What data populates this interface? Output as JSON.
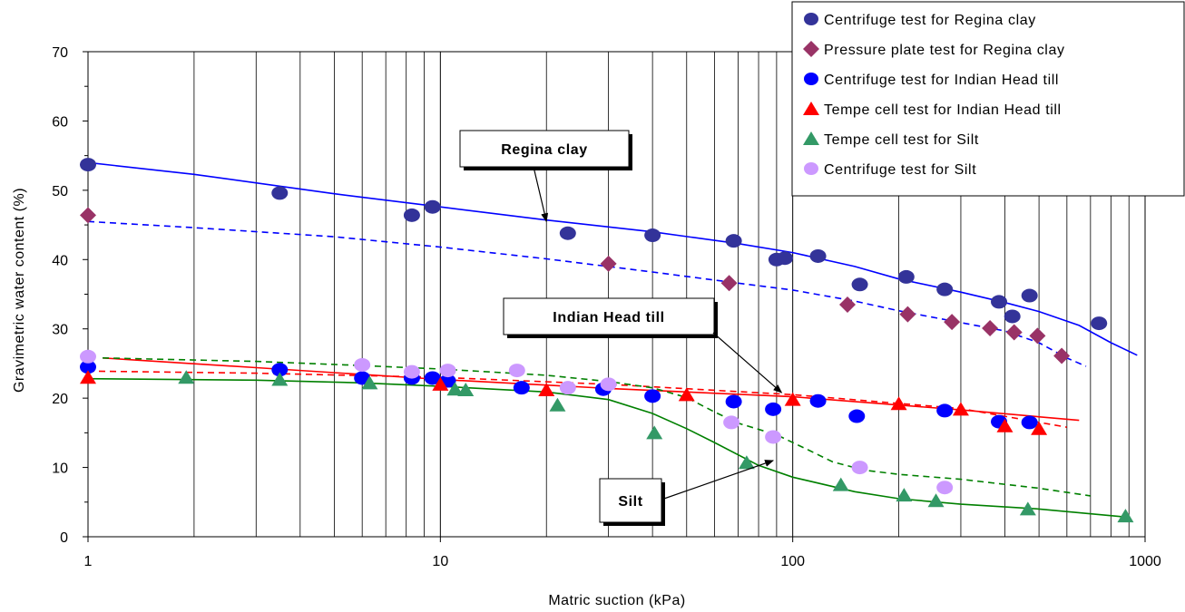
{
  "chart_data": {
    "type": "scatter",
    "xlabel": "Matric suction (kPa)",
    "ylabel": "Gravimetric water content (%)",
    "x_scale": "log",
    "xlim": [
      1,
      1000
    ],
    "ylim": [
      0,
      70
    ],
    "x_ticks": [
      "1",
      "10",
      "100",
      "1000"
    ],
    "y_ticks": [
      "0",
      "10",
      "20",
      "30",
      "40",
      "50",
      "60",
      "70"
    ],
    "grid": "vertical log gridlines",
    "legend_position": "top-right",
    "colors": {
      "navy": "#333399",
      "purple": "#993366",
      "blue": "#0000ff",
      "red": "#ff0000",
      "green": "#339966",
      "lilac": "#cc99ff",
      "fit_blue": "#0000ff",
      "fit_red": "#ff0000",
      "fit_green": "#008000"
    },
    "series": [
      {
        "name": "Centrifuge test for Regina clay",
        "marker": "circle",
        "color": "#333399",
        "points": [
          [
            1,
            53.7
          ],
          [
            3.5,
            49.6
          ],
          [
            8.3,
            46.4
          ],
          [
            9.5,
            47.6
          ],
          [
            23,
            43.8
          ],
          [
            40,
            43.5
          ],
          [
            68,
            42.7
          ],
          [
            90,
            40
          ],
          [
            95,
            40.2
          ],
          [
            118,
            40.5
          ],
          [
            155,
            36.4
          ],
          [
            210,
            37.5
          ],
          [
            270,
            35.7
          ],
          [
            385,
            33.9
          ],
          [
            420,
            31.8
          ],
          [
            470,
            34.8
          ],
          [
            740,
            30.8
          ]
        ]
      },
      {
        "name": "Pressure plate test for Regina clay",
        "marker": "diamond",
        "color": "#993366",
        "points": [
          [
            1,
            46.4
          ],
          [
            30,
            39.4
          ],
          [
            66,
            36.6
          ],
          [
            143,
            33.5
          ],
          [
            212,
            32.1
          ],
          [
            283,
            31
          ],
          [
            363,
            30.1
          ],
          [
            425,
            29.5
          ],
          [
            495,
            29
          ],
          [
            580,
            26.1
          ]
        ]
      },
      {
        "name": "Centrifuge test for Indian Head till",
        "marker": "circle",
        "color": "#0000ff",
        "points": [
          [
            1,
            24.5
          ],
          [
            3.5,
            24.1
          ],
          [
            6,
            22.9
          ],
          [
            8.3,
            22.9
          ],
          [
            9.5,
            22.9
          ],
          [
            10.5,
            22.5
          ],
          [
            17,
            21.5
          ],
          [
            29,
            21.3
          ],
          [
            40,
            20.3
          ],
          [
            68,
            19.5
          ],
          [
            88,
            18.4
          ],
          [
            118,
            19.6
          ],
          [
            152,
            17.4
          ],
          [
            270,
            18.2
          ],
          [
            385,
            16.6
          ],
          [
            470,
            16.5
          ]
        ]
      },
      {
        "name": "Tempe cell test for Indian Head till",
        "marker": "triangle",
        "color": "#ff0000",
        "points": [
          [
            1,
            23
          ],
          [
            10,
            22
          ],
          [
            20,
            21.2
          ],
          [
            50,
            20.5
          ],
          [
            100,
            19.8
          ],
          [
            200,
            19.2
          ],
          [
            300,
            18.4
          ],
          [
            400,
            16
          ],
          [
            500,
            15.6
          ]
        ]
      },
      {
        "name": "Tempe cell  test for Silt",
        "marker": "triangle",
        "color": "#339966",
        "points": [
          [
            1.9,
            23
          ],
          [
            3.5,
            22.7
          ],
          [
            6.3,
            22.2
          ],
          [
            11,
            21.3
          ],
          [
            11.8,
            21.2
          ],
          [
            21.5,
            19
          ],
          [
            40.5,
            15
          ],
          [
            74,
            10.7
          ],
          [
            137,
            7.5
          ],
          [
            207,
            6
          ],
          [
            255,
            5.2
          ],
          [
            465,
            4
          ],
          [
            880,
            3
          ]
        ]
      },
      {
        "name": "Centrifuge test for Silt",
        "marker": "circle",
        "color": "#cc99ff",
        "points": [
          [
            1,
            26
          ],
          [
            6,
            24.8
          ],
          [
            8.3,
            23.8
          ],
          [
            10.5,
            24
          ],
          [
            16.5,
            24
          ],
          [
            23,
            21.5
          ],
          [
            30,
            22
          ],
          [
            67,
            16.5
          ],
          [
            88,
            14.4
          ],
          [
            155,
            10
          ],
          [
            270,
            7.1
          ]
        ]
      }
    ],
    "fit_curves": [
      {
        "color": "#0000ff",
        "dash": "solid",
        "points": [
          [
            1,
            54
          ],
          [
            2,
            52.3
          ],
          [
            5,
            49.5
          ],
          [
            10,
            47.6
          ],
          [
            20,
            45.7
          ],
          [
            40,
            44
          ],
          [
            70,
            42.3
          ],
          [
            100,
            41
          ],
          [
            150,
            39
          ],
          [
            200,
            37.2
          ],
          [
            300,
            35.3
          ],
          [
            400,
            33.8
          ],
          [
            500,
            32.5
          ],
          [
            650,
            30.5
          ],
          [
            800,
            28
          ],
          [
            950,
            26.2
          ]
        ]
      },
      {
        "color": "#0000ff",
        "dash": "dashed",
        "points": [
          [
            1,
            45.5
          ],
          [
            2,
            44.6
          ],
          [
            5,
            43.3
          ],
          [
            10,
            41.8
          ],
          [
            20,
            40.1
          ],
          [
            40,
            38.2
          ],
          [
            70,
            36.6
          ],
          [
            100,
            35.6
          ],
          [
            150,
            34
          ],
          [
            200,
            32.6
          ],
          [
            300,
            30.9
          ],
          [
            400,
            29.7
          ],
          [
            500,
            28
          ],
          [
            600,
            25.8
          ],
          [
            680,
            24.6
          ]
        ]
      },
      {
        "color": "#ff0000",
        "dash": "solid",
        "points": [
          [
            1.1,
            25.8
          ],
          [
            3,
            24.4
          ],
          [
            10,
            22.7
          ],
          [
            30,
            21.4
          ],
          [
            100,
            20.2
          ],
          [
            300,
            18.3
          ],
          [
            650,
            16.8
          ]
        ]
      },
      {
        "color": "#ff0000",
        "dash": "dashed",
        "points": [
          [
            1,
            23.9
          ],
          [
            3,
            23.6
          ],
          [
            10,
            23
          ],
          [
            30,
            22
          ],
          [
            100,
            20.5
          ],
          [
            300,
            18.5
          ],
          [
            600,
            15.8
          ]
        ]
      },
      {
        "color": "#008000",
        "dash": "solid",
        "points": [
          [
            1,
            22.8
          ],
          [
            3,
            22.6
          ],
          [
            6,
            22.2
          ],
          [
            10,
            21.7
          ],
          [
            20,
            20.9
          ],
          [
            30,
            19.8
          ],
          [
            40,
            17.8
          ],
          [
            50,
            15.6
          ],
          [
            60,
            13.6
          ],
          [
            80,
            10.3
          ],
          [
            100,
            8.6
          ],
          [
            150,
            6.5
          ],
          [
            200,
            5.5
          ],
          [
            300,
            4.7
          ],
          [
            500,
            4
          ],
          [
            900,
            2.8
          ]
        ]
      },
      {
        "color": "#008000",
        "dash": "dashed",
        "points": [
          [
            1.1,
            25.8
          ],
          [
            3,
            25.3
          ],
          [
            6,
            24.7
          ],
          [
            10,
            24.2
          ],
          [
            20,
            23.3
          ],
          [
            30,
            22.4
          ],
          [
            40,
            21.5
          ],
          [
            50,
            20.1
          ],
          [
            60,
            18
          ],
          [
            70,
            16.4
          ],
          [
            90,
            14.7
          ],
          [
            110,
            12.6
          ],
          [
            130,
            10.8
          ],
          [
            160,
            9.6
          ],
          [
            200,
            9
          ],
          [
            300,
            8.3
          ],
          [
            500,
            7
          ],
          [
            700,
            5.9
          ]
        ]
      }
    ],
    "annotations": [
      {
        "label": "Regina clay",
        "target": [
          20,
          45.5
        ]
      },
      {
        "label": "Indian Head till",
        "target": [
          93,
          20.8
        ]
      },
      {
        "label": "Silt",
        "target": [
          88,
          11
        ]
      }
    ]
  }
}
